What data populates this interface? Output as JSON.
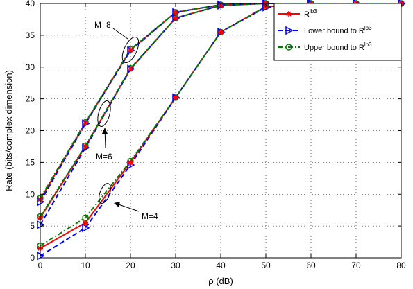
{
  "chart_data": {
    "type": "line",
    "xlabel": "ρ (dB)",
    "ylabel": "Rate (bits/complex dimension)",
    "xlim": [
      0,
      80
    ],
    "ylim": [
      0,
      40
    ],
    "xticks": [
      0,
      10,
      20,
      30,
      40,
      50,
      60,
      70,
      80
    ],
    "yticks": [
      0,
      5,
      10,
      15,
      20,
      25,
      30,
      35,
      40
    ],
    "grid": true,
    "legend_position": "top-right",
    "x": [
      0,
      10,
      20,
      30,
      40,
      50,
      60,
      70,
      80
    ],
    "groups": [
      {
        "label": "M=8",
        "series": [
          {
            "name": "R^lb3",
            "values": [
              9.2,
              21.2,
              32.7,
              38.6,
              39.8,
              40.0,
              40.0,
              40.0,
              40.0
            ]
          },
          {
            "name": "Lower bound to R^lb3",
            "values": [
              8.8,
              21.1,
              32.6,
              38.6,
              39.8,
              40.0,
              40.0,
              40.0,
              40.0
            ]
          },
          {
            "name": "Upper bound to R^lb3",
            "values": [
              9.4,
              21.3,
              32.8,
              38.6,
              39.8,
              40.0,
              40.0,
              40.0,
              40.0
            ]
          }
        ]
      },
      {
        "label": "M=6",
        "series": [
          {
            "name": "R^lb3",
            "values": [
              6.3,
              17.5,
              29.7,
              37.7,
              39.7,
              40.0,
              40.0,
              40.0,
              40.0
            ]
          },
          {
            "name": "Lower bound to R^lb3",
            "values": [
              5.2,
              17.3,
              29.7,
              37.7,
              39.7,
              40.0,
              40.0,
              40.0,
              40.0
            ]
          },
          {
            "name": "Upper bound to R^lb3",
            "values": [
              6.5,
              17.6,
              29.8,
              37.7,
              39.7,
              40.0,
              40.0,
              40.0,
              40.0
            ]
          }
        ]
      },
      {
        "label": "M=4",
        "series": [
          {
            "name": "R^lb3",
            "values": [
              1.5,
              5.5,
              15.0,
              25.2,
              35.5,
              39.5,
              39.9,
              40.0,
              40.0
            ]
          },
          {
            "name": "Lower bound to R^lb3",
            "values": [
              0.3,
              4.7,
              14.6,
              25.2,
              35.5,
              39.4,
              39.9,
              40.0,
              40.0
            ]
          },
          {
            "name": "Upper bound to R^lb3",
            "values": [
              1.9,
              6.3,
              15.2,
              25.2,
              35.5,
              39.5,
              39.9,
              40.0,
              40.0
            ]
          }
        ]
      }
    ],
    "legend": [
      {
        "label": "R",
        "sup": "lb3",
        "color": "#ff0000",
        "dash": "solid",
        "marker": "star"
      },
      {
        "label": "Lower bound to R",
        "sup": "lb3",
        "color": "#0000ff",
        "dash": "dashed",
        "marker": "triangle-right"
      },
      {
        "label": "Upper bound to R",
        "sup": "lb3",
        "color": "#008000",
        "dash": "dashdot",
        "marker": "circle"
      }
    ],
    "annotations": [
      "M=8",
      "M=6",
      "M=4"
    ]
  }
}
